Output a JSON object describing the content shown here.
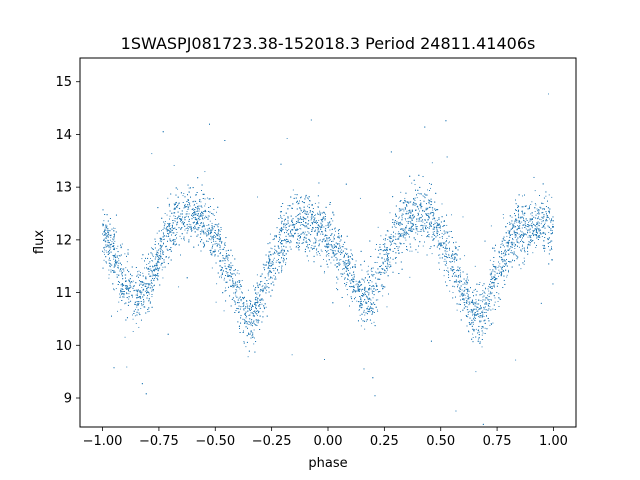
{
  "chart_data": {
    "type": "scatter",
    "title": "1SWASPJ081723.38-152018.3 Period 24811.41406s",
    "xlabel": "phase",
    "ylabel": "flux",
    "xlim": [
      -1.1,
      1.1
    ],
    "ylim": [
      8.45,
      15.45
    ],
    "xticks": [
      -1.0,
      -0.75,
      -0.5,
      -0.25,
      0.0,
      0.25,
      0.5,
      0.75,
      1.0
    ],
    "xtick_labels": [
      "−1.00",
      "−0.75",
      "−0.50",
      "−0.25",
      "0.00",
      "0.25",
      "0.50",
      "0.75",
      "1.00"
    ],
    "yticks": [
      9,
      10,
      11,
      12,
      13,
      14,
      15
    ],
    "ytick_labels": [
      "9",
      "10",
      "11",
      "12",
      "13",
      "14",
      "15"
    ],
    "grid": false,
    "marker_color": "#1f77b4",
    "series": [
      {
        "curve_knots": {
          "phase": [
            -1.0,
            -0.95,
            -0.9,
            -0.85,
            -0.8,
            -0.75,
            -0.7,
            -0.65,
            -0.6,
            -0.55,
            -0.5,
            -0.45,
            -0.4,
            -0.35,
            -0.3,
            -0.25,
            -0.2,
            -0.15,
            -0.1,
            -0.05,
            0.0,
            0.05,
            0.1,
            0.15,
            0.2,
            0.25,
            0.3,
            0.35,
            0.4,
            0.45,
            0.5,
            0.55,
            0.6,
            0.65,
            0.7,
            0.75,
            0.8,
            0.85,
            0.9,
            0.95,
            1.0
          ],
          "flux": [
            12.1,
            11.7,
            11.2,
            10.9,
            11.1,
            11.7,
            12.2,
            12.45,
            12.5,
            12.4,
            12.0,
            11.5,
            10.9,
            10.45,
            10.8,
            11.5,
            12.0,
            12.25,
            12.3,
            12.2,
            12.05,
            11.75,
            11.3,
            10.9,
            11.0,
            11.6,
            12.1,
            12.4,
            12.5,
            12.45,
            12.1,
            11.6,
            11.0,
            10.55,
            10.7,
            11.35,
            11.9,
            12.15,
            12.25,
            12.3,
            12.2
          ]
        },
        "scatter": 0.28,
        "n_points": 9000
      }
    ]
  }
}
